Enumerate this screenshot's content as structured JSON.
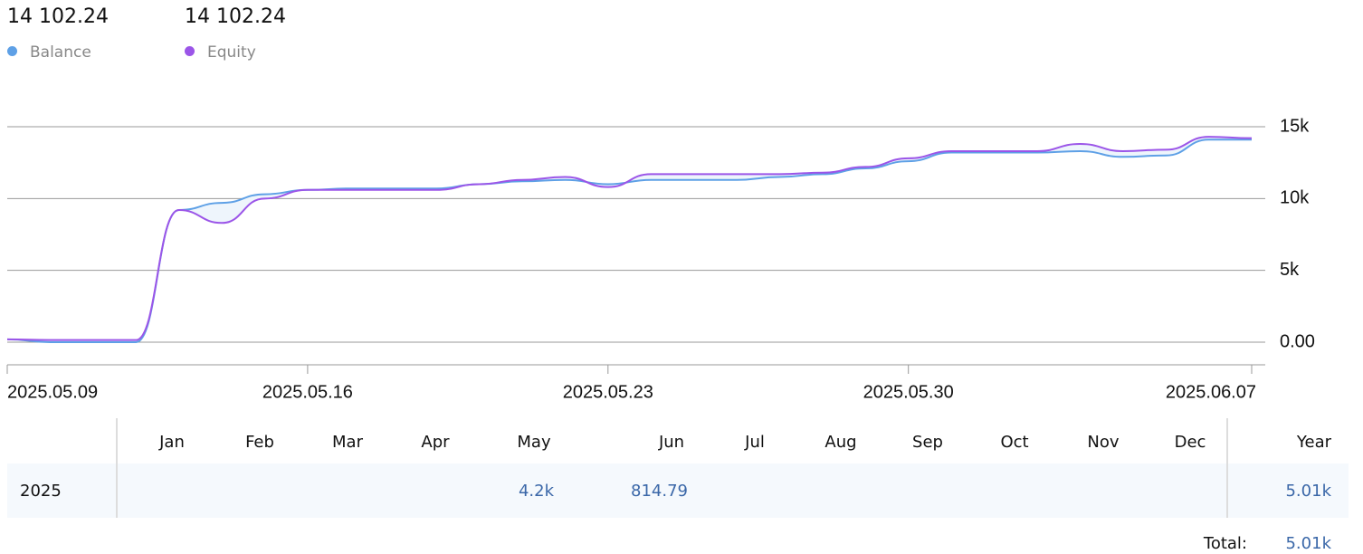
{
  "chart_data": {
    "type": "line",
    "x": [
      "2025.05.09",
      "2025.05.10",
      "2025.05.11",
      "2025.05.12",
      "2025.05.13",
      "2025.05.14",
      "2025.05.15",
      "2025.05.16",
      "2025.05.17",
      "2025.05.18",
      "2025.05.19",
      "2025.05.20",
      "2025.05.21",
      "2025.05.22",
      "2025.05.23",
      "2025.05.24",
      "2025.05.25",
      "2025.05.26",
      "2025.05.27",
      "2025.05.28",
      "2025.05.29",
      "2025.05.30",
      "2025.05.31",
      "2025.06.01",
      "2025.06.02",
      "2025.06.03",
      "2025.06.04",
      "2025.06.05",
      "2025.06.06",
      "2025.06.07"
    ],
    "series": [
      {
        "name": "Balance",
        "current": "14 102.24",
        "color": "#5ea0e6",
        "values": [
          200,
          0,
          0,
          0,
          9200,
          9700,
          10300,
          10600,
          10700,
          10700,
          10700,
          11000,
          11200,
          11300,
          11000,
          11300,
          11300,
          11300,
          11500,
          11700,
          12100,
          12600,
          13200,
          13200,
          13200,
          13300,
          12900,
          13000,
          14100,
          14100
        ]
      },
      {
        "name": "Equity",
        "current": "14 102.24",
        "color": "#9b55e8",
        "values": [
          200,
          150,
          150,
          150,
          9200,
          8300,
          10000,
          10600,
          10600,
          10600,
          10600,
          11000,
          11300,
          11500,
          10800,
          11700,
          11700,
          11700,
          11700,
          11800,
          12200,
          12800,
          13300,
          13300,
          13300,
          13800,
          13300,
          13400,
          14300,
          14200
        ]
      }
    ],
    "fill_between": "#eef5fc",
    "xticks": [
      "2025.05.09",
      "2025.05.16",
      "2025.05.23",
      "2025.05.30",
      "2025.06.07"
    ],
    "ylim": [
      -1000,
      17500
    ],
    "yticks": [
      {
        "value": 0,
        "label": "0.00"
      },
      {
        "value": 5000,
        "label": "5k"
      },
      {
        "value": 10000,
        "label": "10k"
      },
      {
        "value": 15000,
        "label": "15k"
      }
    ],
    "grid": true
  },
  "table": {
    "columns": [
      "Jan",
      "Feb",
      "Mar",
      "Apr",
      "May",
      "Jun",
      "Jul",
      "Aug",
      "Sep",
      "Oct",
      "Nov",
      "Dec",
      "Year"
    ],
    "rows": [
      [
        "2025",
        null,
        null,
        null,
        null,
        "4.2k",
        "814.79",
        null,
        null,
        null,
        null,
        null,
        null,
        "5.01k"
      ]
    ],
    "total_label": "Total:",
    "total_value": "5.01k"
  }
}
